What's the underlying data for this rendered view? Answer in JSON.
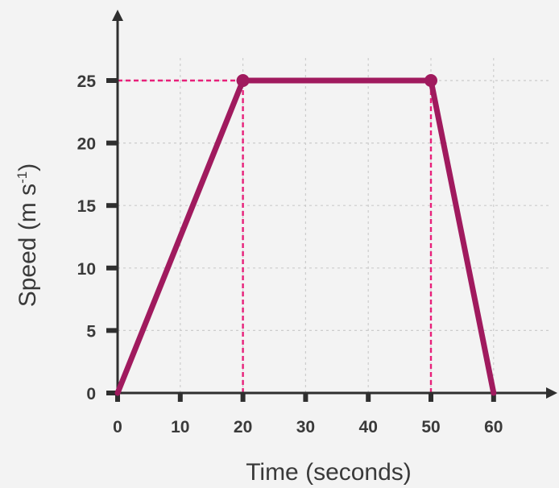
{
  "chart_data": {
    "type": "line",
    "title": "",
    "xlabel": "Time (seconds)",
    "ylabel": {
      "prefix": "Speed (m s",
      "superscript": "-1",
      "suffix": ")"
    },
    "xlim": [
      0,
      69
    ],
    "ylim": [
      0,
      27
    ],
    "x_ticks": [
      0,
      10,
      20,
      30,
      40,
      50,
      60
    ],
    "y_ticks": [
      0,
      5,
      10,
      15,
      20,
      25
    ],
    "x_tick_labels": [
      "0",
      "10",
      "20",
      "30",
      "40",
      "50",
      "60"
    ],
    "y_tick_labels": [
      "0",
      "5",
      "10",
      "15",
      "20",
      "25"
    ],
    "grid": true,
    "series": [
      {
        "points": [
          {
            "x": 0,
            "y": 0
          },
          {
            "x": 20,
            "y": 25
          },
          {
            "x": 50,
            "y": 25
          },
          {
            "x": 60,
            "y": 0
          }
        ],
        "color": "#a01a5e"
      }
    ],
    "markers": [
      {
        "x": 20,
        "y": 25
      },
      {
        "x": 50,
        "y": 25
      }
    ],
    "reference_lines": [
      {
        "orientation": "horizontal",
        "value": 25,
        "from": 0,
        "to": 20
      },
      {
        "orientation": "vertical",
        "value": 20,
        "from": 0,
        "to": 25
      },
      {
        "orientation": "vertical",
        "value": 50,
        "from": 0,
        "to": 25
      }
    ],
    "colors": {
      "background": "#f3f3f3",
      "line": "#a01a5e",
      "reference": "#e8207a",
      "grid": "#cccccc",
      "axis": "#2f2f2f",
      "text": "#3a3a3a"
    }
  }
}
